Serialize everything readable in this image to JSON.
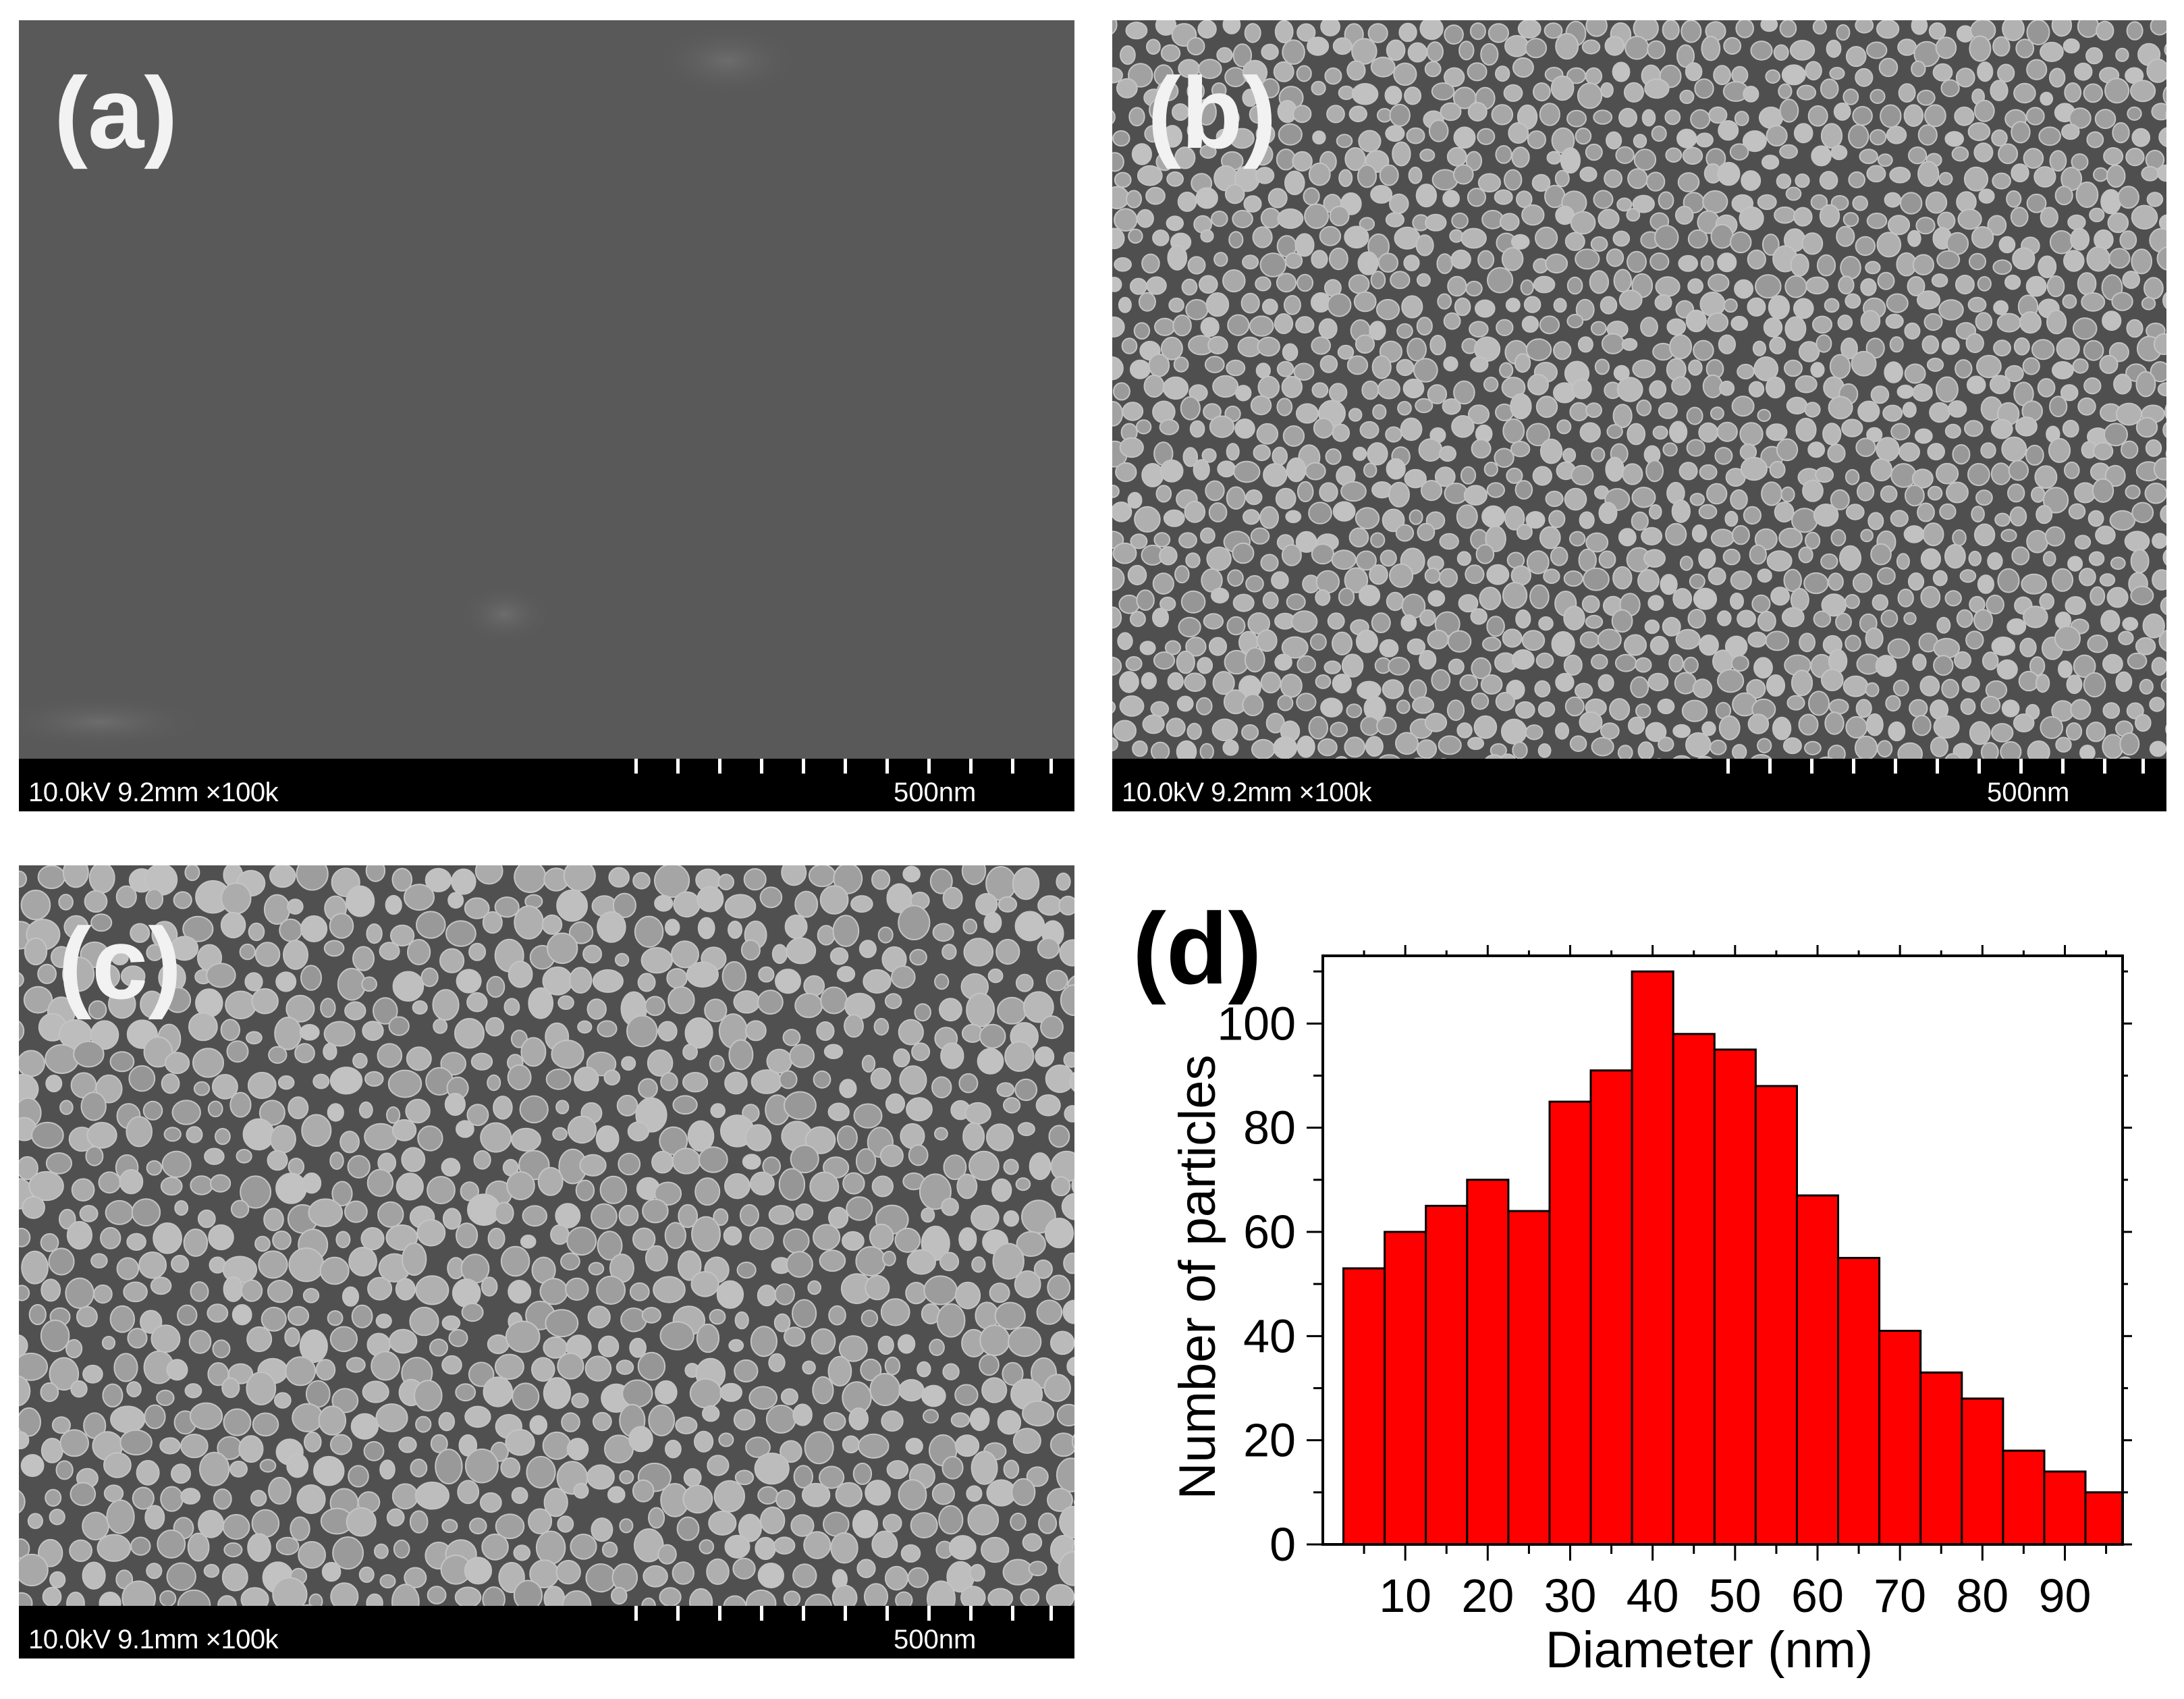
{
  "panels": {
    "a": {
      "label": "(a)",
      "info": "10.0kV 9.2mm ×100k",
      "scale": "500nm",
      "particles": "none"
    },
    "b": {
      "label": "(b)",
      "info": "10.0kV 9.2mm ×100k",
      "scale": "500nm",
      "particles": "dense-small"
    },
    "c": {
      "label": "(c)",
      "info": "10.0kV 9.1mm ×100k",
      "scale": "500nm",
      "particles": "larger-spheres"
    },
    "d": {
      "label": "(d)"
    }
  },
  "colors": {
    "bar_fill": "#ff0000",
    "sem_background": "#5a5a5a",
    "particle": "#a8a8a8"
  },
  "chart_data": {
    "type": "bar",
    "title": "",
    "xlabel": "Diameter (nm)",
    "ylabel": "Number of particles",
    "x": [
      5,
      10,
      15,
      20,
      25,
      30,
      35,
      40,
      45,
      50,
      55,
      60,
      65,
      70,
      75,
      80,
      85,
      90,
      95
    ],
    "values": [
      53,
      60,
      65,
      70,
      64,
      85,
      91,
      110,
      98,
      95,
      88,
      67,
      55,
      41,
      33,
      28,
      18,
      14,
      10
    ],
    "xlim": [
      0,
      97
    ],
    "ylim": [
      0,
      113
    ],
    "xticks": [
      10,
      20,
      30,
      40,
      50,
      60,
      70,
      80,
      90
    ],
    "yticks": [
      0,
      20,
      40,
      60,
      80,
      100
    ],
    "xtick_labels": [
      "10",
      "20",
      "30",
      "40",
      "50",
      "60",
      "70",
      "80",
      "90"
    ],
    "ytick_labels": [
      "0",
      "20",
      "40",
      "60",
      "80",
      "100"
    ],
    "grid": false,
    "legend": "none"
  }
}
